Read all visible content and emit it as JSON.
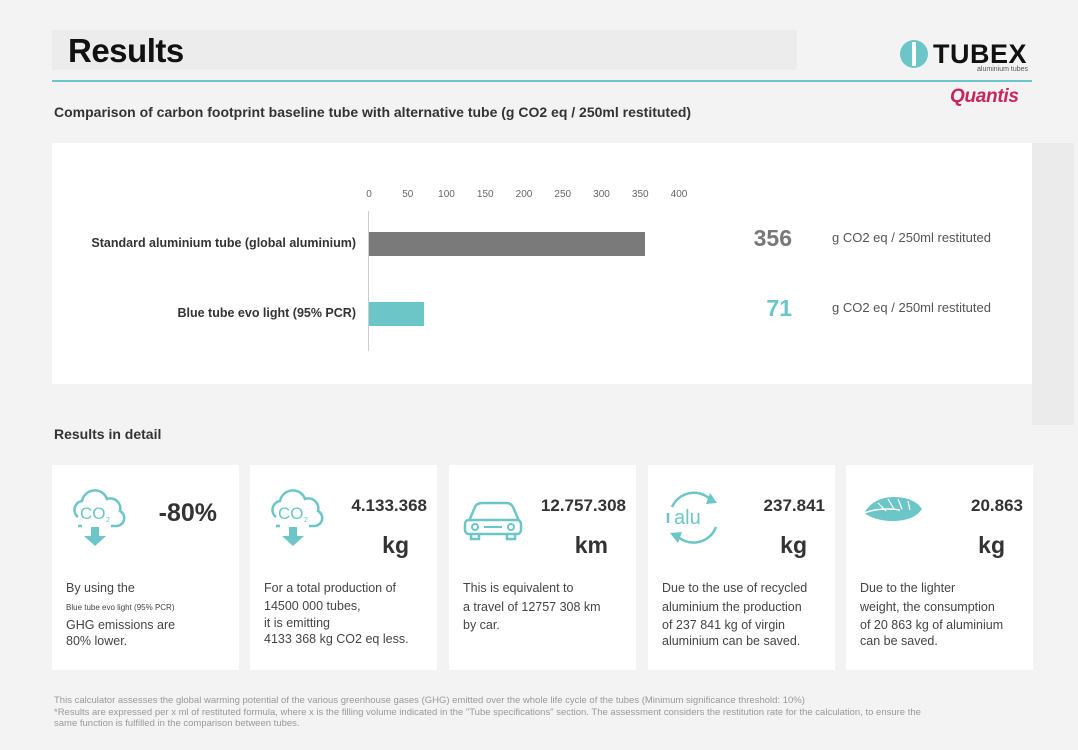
{
  "header": {
    "title": "Results",
    "tubex_logo": "TUBEX",
    "tubex_tagline": "aluminium tubes",
    "quantis_logo": "Quantis"
  },
  "chart_section": {
    "title": "Comparison of carbon footprint baseline tube with alternative tube (g CO2 eq / 250ml restituted)"
  },
  "chart_data": {
    "type": "bar",
    "orientation": "horizontal",
    "title": "Comparison of carbon footprint baseline tube with alternative tube (g CO2 eq / 250ml restituted)",
    "categories": [
      "Standard aluminium tube (global aluminium)",
      "Blue tube evo light (95% PCR)"
    ],
    "values": [
      356,
      71
    ],
    "value_unit": "g CO2 eq / 250ml restituted",
    "xlim": [
      0,
      400
    ],
    "ticks": [
      0,
      50,
      100,
      150,
      200,
      250,
      300,
      350,
      400
    ],
    "colors": [
      "#7a7a7a",
      "#6cc6c8"
    ],
    "grid": false,
    "legend": "none"
  },
  "details": {
    "heading": "Results in detail",
    "cards": [
      {
        "icon": "co2-reduction-icon",
        "value": "-80%",
        "unit": "",
        "lines": [
          "By using the",
          "Blue tube evo light (95% PCR)",
          "GHG emissions are",
          "80% lower."
        ]
      },
      {
        "icon": "co2-reduction-icon",
        "value": "4.133.368",
        "unit": "kg",
        "lines": [
          "For a total production of",
          "14500 000 tubes,",
          "it is emitting",
          "4133 368 kg CO2 eq less."
        ]
      },
      {
        "icon": "car-icon",
        "value": "12.757.308",
        "unit": "km",
        "lines": [
          "This is equivalent to",
          "a travel of 12757 308 km",
          "by car."
        ]
      },
      {
        "icon": "aluminium-recycling-icon",
        "icon_text": "alu",
        "value": "237.841",
        "unit": "kg",
        "lines": [
          "Due to the use of recycled",
          "aluminium the production",
          "of 237 841 kg of virgin",
          "aluminium can be saved."
        ]
      },
      {
        "icon": "feather-icon",
        "value": "20.863",
        "unit": "kg",
        "lines": [
          "Due to the lighter",
          "weight, the consumption",
          "of 20 863 kg of aluminium",
          "can be saved."
        ]
      }
    ]
  },
  "footnote": {
    "line1": "This calculator assesses the global warming potential of the various greenhouse gases (GHG) emitted over the whole life cycle of the tubes (Minimum significance threshold: 10%)",
    "line2": "*Results are expressed per x ml of restituted formula, where x is the filling volume indicated in the \"Tube specifications\" section. The assessment considers the restitution rate for the calculation, to ensure the",
    "line3": "same function is fulfilled in the comparison between tubes."
  },
  "colors": {
    "accent": "#6cc6c8",
    "baseline_bar": "#7a7a7a",
    "quantis": "#c8265a"
  }
}
